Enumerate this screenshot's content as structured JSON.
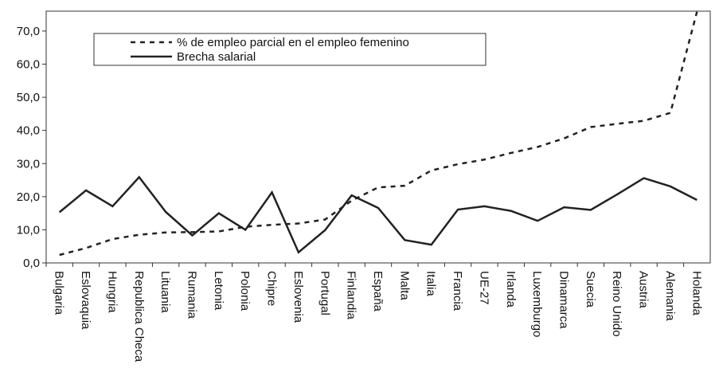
{
  "chart_data": {
    "type": "line",
    "categories": [
      "Bulgaria",
      "Eslovaquia",
      "Hungria",
      "Republica Checa",
      "Lituania",
      "Rumania",
      "Letonia",
      "Polonia",
      "Chipre",
      "Eslovenia",
      "Portugal",
      "Finlandia",
      "España",
      "Malta",
      "Italia",
      "Francia",
      "UE-27",
      "Irlanda",
      "Luxemburgo",
      "Dinamarca",
      "Suecia",
      "Reino Unido",
      "Austria",
      "Alemania",
      "Holanda"
    ],
    "series": [
      {
        "name": "% de empleo parcial en el empleo femenino",
        "color": "#222222",
        "dash": true,
        "values": [
          2.4,
          4.5,
          7.2,
          8.5,
          9.2,
          9.3,
          9.5,
          10.9,
          11.5,
          11.9,
          13.1,
          18.8,
          22.8,
          23.3,
          27.9,
          29.8,
          31.2,
          33.2,
          35.0,
          37.6,
          41.0,
          42.0,
          42.9,
          45.3,
          75.8
        ]
      },
      {
        "name": "Brecha salarial",
        "color": "#222222",
        "dash": false,
        "values": [
          15.3,
          21.9,
          17.1,
          25.9,
          15.4,
          8.3,
          15.0,
          10.0,
          21.3,
          3.2,
          9.9,
          20.4,
          16.6,
          6.9,
          5.5,
          16.1,
          17.1,
          15.7,
          12.7,
          16.8,
          16.0,
          20.7,
          25.6,
          23.1,
          19.0
        ]
      }
    ],
    "ylim": [
      0,
      76
    ],
    "yticks": [
      {
        "value": 0,
        "label": "0,0"
      },
      {
        "value": 10,
        "label": "10,0"
      },
      {
        "value": 20,
        "label": "20,0"
      },
      {
        "value": 30,
        "label": "30,0"
      },
      {
        "value": 40,
        "label": "40,0"
      },
      {
        "value": 50,
        "label": "50,0"
      },
      {
        "value": 60,
        "label": "60,0"
      },
      {
        "value": 70,
        "label": "70,0"
      }
    ],
    "grid": false
  }
}
